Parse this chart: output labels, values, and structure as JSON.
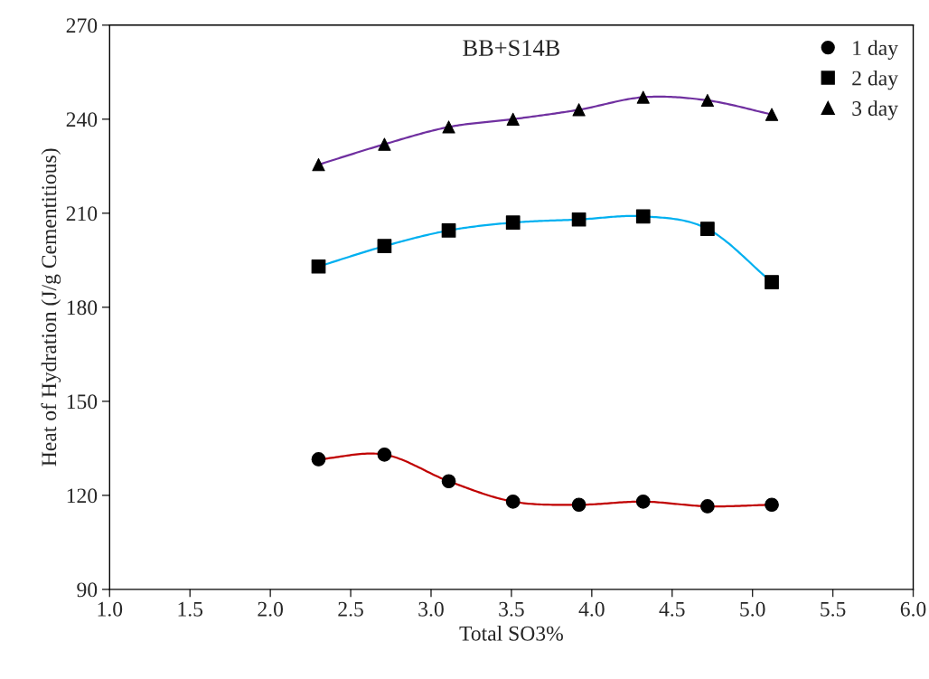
{
  "chart_data": {
    "type": "line",
    "title": "BB+S14B",
    "xlabel": "Total SO3%",
    "ylabel": "Heat of Hydration (J/g Cementitious)",
    "x": [
      2.3,
      2.71,
      3.11,
      3.51,
      3.92,
      4.32,
      4.72,
      5.12
    ],
    "series": [
      {
        "name": "1 day",
        "color": "#c00000",
        "marker": "circle",
        "values": [
          131.5,
          133,
          124.5,
          118,
          117,
          118,
          116.5,
          117
        ]
      },
      {
        "name": "2 day",
        "color": "#00b0f0",
        "marker": "square",
        "values": [
          193,
          199.5,
          204.5,
          207,
          208,
          209,
          205,
          188
        ]
      },
      {
        "name": "3 day",
        "color": "#7030a0",
        "marker": "triangle",
        "values": [
          225.5,
          232,
          237.5,
          240,
          243,
          247,
          246,
          241.5
        ]
      }
    ],
    "xlim": [
      1.0,
      6.0
    ],
    "xticks": [
      {
        "value": 1.0,
        "label": "1.0"
      },
      1.5,
      {
        "value": 2.0,
        "label": "2.0"
      },
      2.5,
      {
        "value": 3.0,
        "label": "3.0"
      },
      3.5,
      {
        "value": 4.0,
        "label": "4.0"
      },
      4.5,
      {
        "value": 5.0,
        "label": "5.0"
      },
      5.5,
      {
        "value": 6.0,
        "label": "6.0"
      }
    ],
    "ylim": [
      90,
      270
    ],
    "yticks": [
      90,
      120,
      150,
      180,
      210,
      240,
      270
    ],
    "grid": false,
    "legend": "top right"
  }
}
